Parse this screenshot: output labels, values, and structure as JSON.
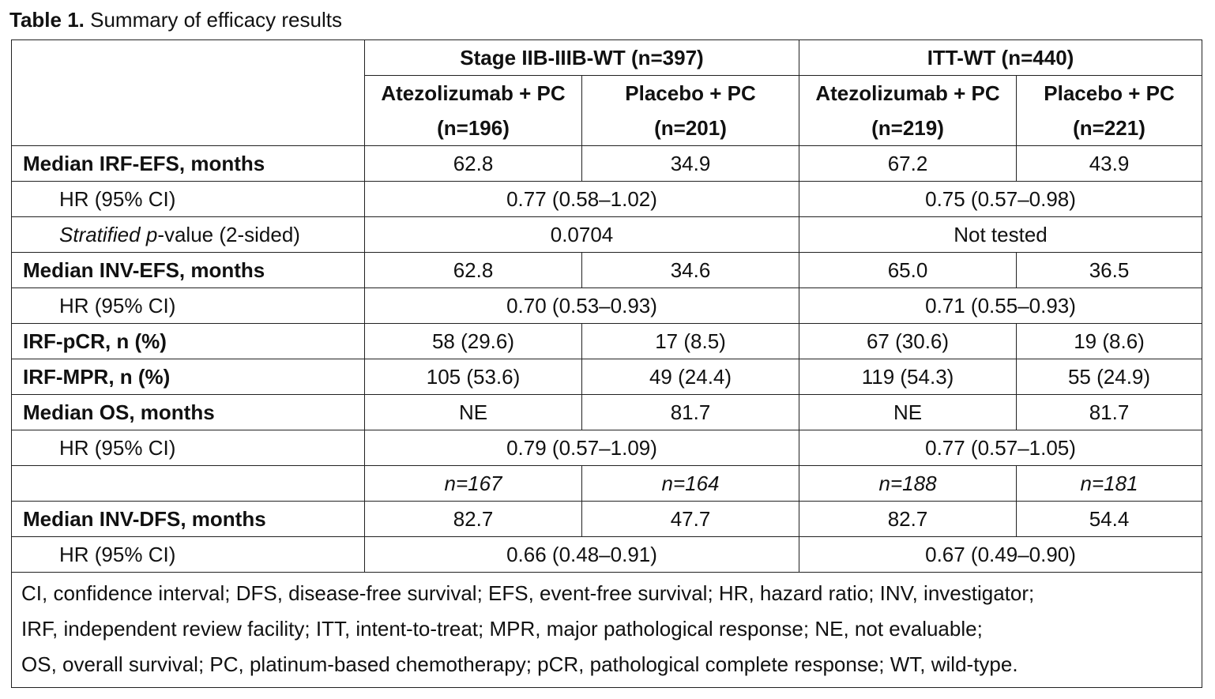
{
  "caption": {
    "label": "Table 1.",
    "text": "Summary of efficacy results"
  },
  "header": {
    "group1": "Stage IIB-IIIB-WT (n=397)",
    "group2": "ITT-WT (n=440)",
    "cols": [
      {
        "name": "Atezolizumab + PC",
        "n": "(n=196)"
      },
      {
        "name": "Placebo + PC",
        "n": "(n=201)"
      },
      {
        "name": "Atezolizumab + PC",
        "n": "(n=219)"
      },
      {
        "name": "Placebo + PC",
        "n": "(n=221)"
      }
    ]
  },
  "rows": {
    "irf_efs": {
      "label": "Median IRF-EFS, months",
      "values": [
        "62.8",
        "34.9",
        "67.2",
        "43.9"
      ]
    },
    "irf_efs_hr": {
      "label": "HR (95% CI)",
      "values": [
        "0.77 (0.58–1.02)",
        "0.75 (0.57–0.98)"
      ]
    },
    "irf_efs_p": {
      "label_italic": "Stratified",
      "label_rest_1": " ",
      "label_italic_p": "p",
      "label_rest_2": "-value (2-sided)",
      "values": [
        "0.0704",
        "Not tested"
      ]
    },
    "inv_efs": {
      "label": "Median INV-EFS, months",
      "values": [
        "62.8",
        "34.6",
        "65.0",
        "36.5"
      ]
    },
    "inv_efs_hr": {
      "label": "HR (95% CI)",
      "values": [
        "0.70 (0.53–0.93)",
        "0.71 (0.55–0.93)"
      ]
    },
    "irf_pcr": {
      "label": "IRF-pCR, n (%)",
      "values": [
        "58 (29.6)",
        "17 (8.5)",
        "67 (30.6)",
        "19 (8.6)"
      ]
    },
    "irf_mpr": {
      "label": "IRF-MPR, n (%)",
      "values": [
        "105 (53.6)",
        "49 (24.4)",
        "119 (54.3)",
        "55 (24.9)"
      ]
    },
    "os": {
      "label": "Median OS, months",
      "values": [
        "NE",
        "81.7",
        "NE",
        "81.7"
      ]
    },
    "os_hr": {
      "label": "HR (95% CI)",
      "values": [
        "0.79 (0.57–1.09)",
        "0.77 (0.57–1.05)"
      ]
    },
    "dfs_n": {
      "label": "",
      "values": [
        "n=167",
        "n=164",
        "n=188",
        "n=181"
      ]
    },
    "inv_dfs": {
      "label": "Median INV-DFS, months",
      "values": [
        "82.7",
        "47.7",
        "82.7",
        "54.4"
      ]
    },
    "inv_dfs_hr": {
      "label": "HR (95% CI)",
      "values": [
        "0.66 (0.48–0.91)",
        "0.67 (0.49–0.90)"
      ]
    }
  },
  "footnote": [
    "CI, confidence interval; DFS, disease-free survival; EFS, event-free survival; HR, hazard ratio; INV, investigator;",
    "IRF, independent review facility; ITT, intent-to-treat; MPR, major pathological response; NE, not evaluable;",
    "OS, overall survival; PC, platinum-based chemotherapy; pCR, pathological complete response; WT, wild-type."
  ]
}
